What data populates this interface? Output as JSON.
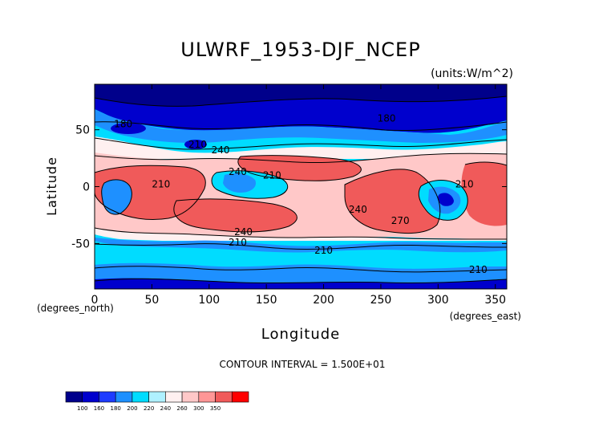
{
  "chart_data": {
    "type": "heatmap",
    "title": "ULWRF_1953-DJF_NCEP",
    "units_note": "(units:W/m^2)",
    "xlabel": "Longitude",
    "ylabel": "Latitude",
    "x_note": "(degrees_east)",
    "y_note": "(degrees_north)",
    "xlim": [
      0,
      360
    ],
    "ylim": [
      -90,
      90
    ],
    "x_ticks": [
      "0",
      "50",
      "100",
      "150",
      "200",
      "250",
      "300",
      "350"
    ],
    "x_tick_values": [
      0,
      50,
      100,
      150,
      200,
      250,
      300,
      350
    ],
    "y_ticks": [
      "50",
      "0",
      "-50"
    ],
    "y_tick_values": [
      50,
      0,
      -50
    ],
    "contour_interval_text": "CONTOUR INTERVAL = 1.500E+01",
    "contour_labels": [
      {
        "text": "180",
        "lon": 25,
        "lat": 55
      },
      {
        "text": "180",
        "lon": 255,
        "lat": 60
      },
      {
        "text": "210",
        "lon": 90,
        "lat": 37
      },
      {
        "text": "240",
        "lon": 110,
        "lat": 32
      },
      {
        "text": "240",
        "lon": 125,
        "lat": 13
      },
      {
        "text": "210",
        "lon": 155,
        "lat": 10
      },
      {
        "text": "210",
        "lon": 58,
        "lat": 2
      },
      {
        "text": "240",
        "lon": 230,
        "lat": -20
      },
      {
        "text": "270",
        "lon": 267,
        "lat": -30
      },
      {
        "text": "240",
        "lon": 130,
        "lat": -40
      },
      {
        "text": "210",
        "lon": 125,
        "lat": -49
      },
      {
        "text": "210",
        "lon": 200,
        "lat": -56
      },
      {
        "text": "210",
        "lon": 335,
        "lat": -73
      },
      {
        "text": "210",
        "lon": 323,
        "lat": 2
      }
    ],
    "colorbar": {
      "levels": [
        "100",
        "160",
        "180",
        "200",
        "220",
        "240",
        "260",
        "300",
        "350"
      ],
      "colors": [
        "#00008b",
        "#0000cd",
        "#1e3cff",
        "#1e90ff",
        "#00dcff",
        "#aff0ff",
        "#fff0f0",
        "#ffc8c8",
        "#ff9696",
        "#f05a5a",
        "#ff0000"
      ]
    }
  }
}
